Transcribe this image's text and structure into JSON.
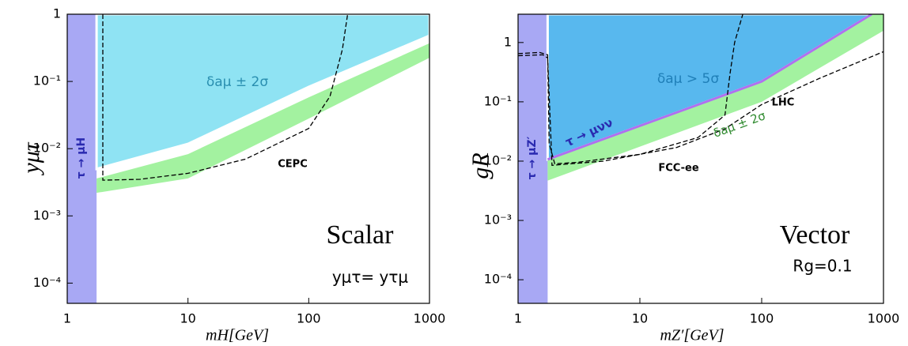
{
  "chart_data": [
    {
      "type": "region",
      "title": "Scalar",
      "subtitle": "yμτ= yτμ",
      "xlabel": "mH[GeV]",
      "ylabel": "yμτ",
      "log_x": true,
      "log_y": true,
      "xlim": [
        1,
        1000
      ],
      "ylim": [
        5e-05,
        1
      ],
      "xticks": [
        1,
        10,
        100,
        1000
      ],
      "yticks": [
        1,
        {
          "value": 0.1,
          "label": "10⁻¹"
        },
        {
          "value": 0.01,
          "label": "10⁻²"
        },
        {
          "value": 0.001,
          "label": "10⁻³"
        },
        {
          "value": 0.0001,
          "label": "10⁻⁴"
        }
      ],
      "regions": [
        {
          "name": "τ → μH",
          "color": "#a8a8f4",
          "x": [
            1,
            1.75,
            1.75,
            1
          ],
          "y": [
            5e-05,
            5e-05,
            1,
            1
          ]
        },
        {
          "name": "δaμ > 5σ",
          "color": "#8fe3f3",
          "x": [
            1.75,
            10,
            100,
            1000,
            1000,
            1.75
          ],
          "y": [
            0.005,
            0.0118,
            0.083,
            0.48,
            1,
            1
          ]
        },
        {
          "name": "δaμ ± 2σ",
          "color": "#a3f2a0",
          "x": [
            1.75,
            10,
            100,
            1000,
            1000,
            100,
            10,
            1.75
          ],
          "y": [
            0.0036,
            0.0083,
            0.058,
            0.37,
            0.225,
            0.028,
            0.0036,
            0.0022
          ]
        }
      ],
      "curves": [
        {
          "name": "CEPC",
          "color": "#000000",
          "dash": true,
          "x": [
            1.97,
            1.97,
            4,
            10,
            30,
            100,
            150,
            190,
            210
          ],
          "y": [
            1,
            0.0034,
            0.0035,
            0.0043,
            0.007,
            0.02,
            0.06,
            0.3,
            1
          ]
        }
      ]
    },
    {
      "type": "region",
      "title": "Vector",
      "subtitle": "Rg=0.1",
      "xlabel": "mZ′[GeV]",
      "ylabel": "gR",
      "log_x": true,
      "log_y": true,
      "xlim": [
        1,
        1000
      ],
      "ylim": [
        4e-05,
        3
      ],
      "xticks": [
        1,
        10,
        100,
        1000
      ],
      "yticks": [
        1,
        {
          "value": 0.1,
          "label": "10⁻¹"
        },
        {
          "value": 0.01,
          "label": "10⁻²"
        },
        {
          "value": 0.001,
          "label": "10⁻³"
        },
        {
          "value": 0.0001,
          "label": "10⁻⁴"
        }
      ],
      "regions": [
        {
          "name": "τ → μZ′",
          "color": "#a8a8f4",
          "x": [
            1,
            1.75,
            1.75,
            1
          ],
          "y": [
            4e-05,
            4e-05,
            3,
            3
          ]
        },
        {
          "name": "δaμ > 5σ",
          "color": "#58b8ee",
          "x": [
            1.75,
            100,
            800,
            1.75
          ],
          "y": [
            0.0107,
            0.22,
            3,
            3
          ]
        },
        {
          "name": "δaμ ± 2σ",
          "color": "#a3f2a0",
          "x": [
            1.75,
            100,
            800,
            1000,
            1000,
            100,
            1.75
          ],
          "y": [
            0.0107,
            0.22,
            3,
            3,
            1.58,
            0.1,
            0.0047
          ]
        }
      ],
      "curves": [
        {
          "name": "τ → μνν",
          "color": "#b070f0",
          "dash": false,
          "x": [
            1.75,
            100,
            800
          ],
          "y": [
            0.0107,
            0.22,
            3
          ]
        },
        {
          "name": "FCC-ee",
          "color": "#000000",
          "dash": true,
          "x": [
            1,
            1.5,
            1.75,
            1.8,
            2,
            3,
            10,
            30,
            50,
            55,
            60,
            70
          ],
          "y": [
            0.65,
            0.68,
            0.62,
            0.02,
            0.009,
            0.0095,
            0.013,
            0.025,
            0.06,
            0.3,
            1,
            3
          ]
        },
        {
          "name": "LHC",
          "color": "#000000",
          "dash": true,
          "x": [
            1,
            1.6,
            1.75,
            1.9,
            5,
            20,
            50,
            100,
            300,
            1000
          ],
          "y": [
            0.6,
            0.62,
            0.55,
            0.0085,
            0.01,
            0.017,
            0.035,
            0.09,
            0.25,
            0.7
          ]
        }
      ]
    }
  ]
}
